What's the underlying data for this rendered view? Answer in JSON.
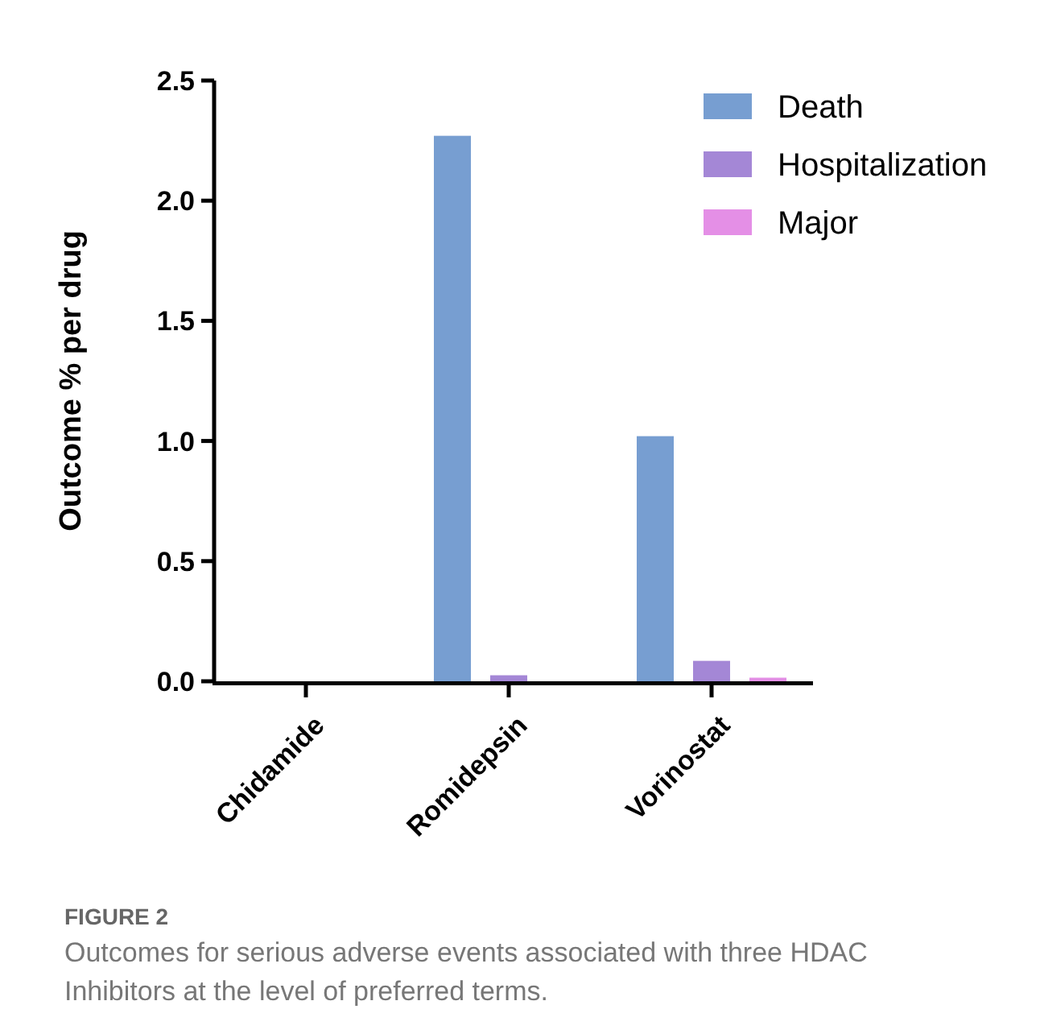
{
  "chart_data": {
    "type": "bar",
    "categories": [
      "Chidamide",
      "Romidepsin",
      "Vorinostat"
    ],
    "series": [
      {
        "name": "Death",
        "color": "#779ed1",
        "values": [
          0,
          2.27,
          1.02
        ]
      },
      {
        "name": "Hospitalization",
        "color": "#a487d6",
        "values": [
          0,
          0.025,
          0.085
        ]
      },
      {
        "name": "Major",
        "color": "#e48fe6",
        "values": [
          0,
          0,
          0.015
        ]
      }
    ],
    "ylabel": "Outcome % per drug",
    "ylim": [
      0,
      2.5
    ],
    "yticks": [
      {
        "value": 0,
        "label": "0.0"
      },
      {
        "value": 0.5,
        "label": "0.5"
      },
      {
        "value": 1,
        "label": "1.0"
      },
      {
        "value": 1.5,
        "label": "1.5"
      },
      {
        "value": 2,
        "label": "2.0"
      },
      {
        "value": 2.5,
        "label": "2.5"
      }
    ],
    "grid": false,
    "legend": "top right",
    "annotations": [
      "FIGURE 2",
      "Outcomes for serious adverse events associated with three HDAC Inhibitors at the level of preferred terms."
    ]
  }
}
